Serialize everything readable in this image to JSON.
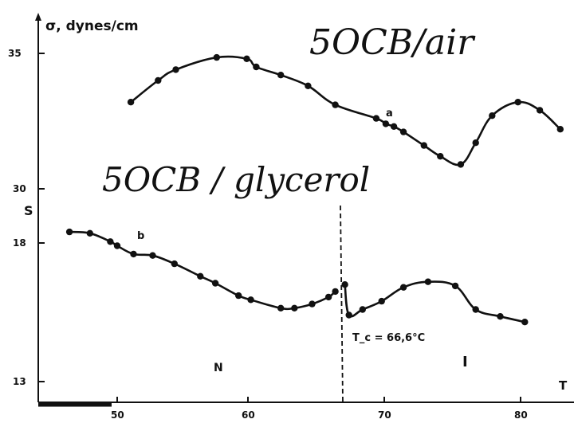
{
  "chart_data": {
    "type": "line",
    "axes": {
      "x_ticks": [
        "50",
        "60",
        "70",
        "80"
      ],
      "x_label": "T",
      "y_top_label": "σ, dynes/cm",
      "y_top_ticks": [
        "35",
        "30"
      ],
      "y_bottom_label": "S",
      "y_bottom_ticks": [
        "18",
        "13"
      ]
    },
    "series": [
      {
        "name": "a",
        "axis": "sigma",
        "points": [
          [
            51.0,
            33.2
          ],
          [
            53.0,
            34.0
          ],
          [
            54.3,
            34.4
          ],
          [
            57.3,
            34.85
          ],
          [
            59.5,
            34.8
          ],
          [
            60.2,
            34.5
          ],
          [
            62.0,
            34.2
          ],
          [
            64.0,
            33.8
          ],
          [
            66.0,
            33.1
          ],
          [
            69.0,
            32.6
          ],
          [
            69.7,
            32.4
          ],
          [
            70.3,
            32.3
          ],
          [
            71.0,
            32.1
          ],
          [
            72.5,
            31.6
          ],
          [
            73.7,
            31.2
          ],
          [
            75.2,
            30.9
          ],
          [
            76.3,
            31.7
          ],
          [
            77.5,
            32.7
          ],
          [
            79.4,
            33.2
          ],
          [
            81.0,
            32.9
          ],
          [
            82.5,
            32.2
          ]
        ]
      },
      {
        "name": "b",
        "axis": "S",
        "points": [
          [
            46.5,
            18.4
          ],
          [
            48.0,
            18.35
          ],
          [
            49.5,
            18.05
          ],
          [
            50.0,
            17.9
          ],
          [
            51.2,
            17.6
          ],
          [
            52.6,
            17.55
          ],
          [
            54.2,
            17.25
          ],
          [
            56.1,
            16.8
          ],
          [
            57.2,
            16.55
          ],
          [
            58.9,
            16.1
          ],
          [
            59.8,
            15.95
          ],
          [
            62.0,
            15.65
          ],
          [
            63.0,
            15.65
          ],
          [
            64.3,
            15.8
          ],
          [
            65.5,
            16.05
          ],
          [
            66.0,
            16.25
          ],
          [
            66.7,
            16.5
          ],
          [
            67.0,
            15.4
          ],
          [
            68.0,
            15.6
          ],
          [
            69.4,
            15.9
          ],
          [
            71.0,
            16.4
          ],
          [
            72.8,
            16.6
          ],
          [
            74.8,
            16.45
          ],
          [
            76.3,
            15.6
          ],
          [
            78.1,
            15.35
          ],
          [
            79.9,
            15.15
          ]
        ]
      }
    ],
    "transition": {
      "x": 66.6,
      "label": "T_c = 66,6°C"
    },
    "phase_labels": [
      "N",
      "I"
    ],
    "handwritten": {
      "top": "5OCB/air",
      "middle": "5OCB / glycerol"
    }
  }
}
